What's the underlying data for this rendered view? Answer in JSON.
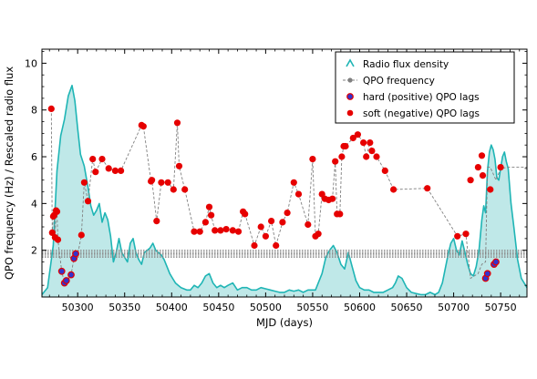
{
  "chart_data": {
    "type": "line",
    "xlabel": "MJD (days)",
    "ylabel": "QPO frequency (Hz) / Rescaled radio flux",
    "xlim": [
      50262,
      50778
    ],
    "ylim": [
      0,
      10.6
    ],
    "xticks": [
      50300,
      50350,
      50400,
      50450,
      50500,
      50550,
      50600,
      50650,
      50700,
      50750
    ],
    "yticks": [
      2,
      4,
      6,
      8,
      10
    ],
    "grid": false,
    "legend_position": "top-right",
    "reference_band": {
      "y_center": 1.85,
      "y_half_width": 0.15,
      "style": "dotted-gray"
    },
    "colors": {
      "radio_fill": "#bfe8e8",
      "radio_line": "#1fb5b5",
      "qpo_line": "#808080",
      "soft_marker": "#e60000",
      "hard_marker_face": "#3333cc",
      "hard_marker_edge": "#e60000"
    },
    "series": [
      {
        "name": "Radio flux density",
        "kind": "area",
        "x": [
          50262,
          50268,
          50274,
          50278,
          50282,
          50286,
          50290,
          50294,
          50297,
          50300,
          50303,
          50307,
          50311,
          50314,
          50317,
          50320,
          50323,
          50326,
          50329,
          50332,
          50335,
          50338,
          50341,
          50344,
          50347,
          50350,
          50353,
          50356,
          50359,
          50362,
          50365,
          50368,
          50371,
          50374,
          50377,
          50380,
          50383,
          50386,
          50389,
          50392,
          50395,
          50398,
          50401,
          50404,
          50407,
          50410,
          50413,
          50416,
          50420,
          50424,
          50428,
          50432,
          50436,
          50440,
          50444,
          50448,
          50452,
          50456,
          50460,
          50465,
          50470,
          50475,
          50480,
          50485,
          50490,
          50495,
          50500,
          50505,
          50510,
          50515,
          50520,
          50525,
          50530,
          50535,
          50540,
          50545,
          50550,
          50553,
          50556,
          50560,
          50564,
          50568,
          50572,
          50576,
          50580,
          50584,
          50588,
          50592,
          50596,
          50600,
          50605,
          50610,
          50615,
          50620,
          50625,
          50630,
          50635,
          50638,
          50641,
          50645,
          50650,
          50655,
          50660,
          50665,
          50670,
          50675,
          50680,
          50684,
          50688,
          50691,
          50694,
          50697,
          50700,
          50703,
          50706,
          50709,
          50712,
          50715,
          50718,
          50721,
          50724,
          50727,
          50730,
          50732,
          50734,
          50736,
          50738,
          50740,
          50742,
          50744,
          50746,
          50748,
          50750,
          50752,
          50754,
          50756,
          50758,
          50761,
          50764,
          50768,
          50772,
          50778
        ],
        "y": [
          0.1,
          0.4,
          2.2,
          5.4,
          6.9,
          7.6,
          8.6,
          9.05,
          8.4,
          7.2,
          6.1,
          5.6,
          4.7,
          3.9,
          3.5,
          3.7,
          4.0,
          3.2,
          3.6,
          3.3,
          2.6,
          1.5,
          1.9,
          2.5,
          1.9,
          1.7,
          1.5,
          2.3,
          2.5,
          1.9,
          1.6,
          1.4,
          1.9,
          2.0,
          2.1,
          2.3,
          2.0,
          1.9,
          1.8,
          1.6,
          1.3,
          1.0,
          0.8,
          0.6,
          0.5,
          0.4,
          0.35,
          0.3,
          0.3,
          0.5,
          0.4,
          0.6,
          0.9,
          1.0,
          0.6,
          0.4,
          0.5,
          0.4,
          0.5,
          0.6,
          0.3,
          0.4,
          0.4,
          0.3,
          0.3,
          0.4,
          0.35,
          0.3,
          0.25,
          0.2,
          0.2,
          0.3,
          0.25,
          0.3,
          0.2,
          0.3,
          0.3,
          0.3,
          0.6,
          1.0,
          1.7,
          2.0,
          2.2,
          1.9,
          1.4,
          1.2,
          1.9,
          1.3,
          0.7,
          0.4,
          0.3,
          0.3,
          0.2,
          0.2,
          0.2,
          0.3,
          0.4,
          0.6,
          0.9,
          0.8,
          0.4,
          0.2,
          0.15,
          0.1,
          0.1,
          0.2,
          0.1,
          0.2,
          0.6,
          1.2,
          1.8,
          2.3,
          2.5,
          2.0,
          1.8,
          2.4,
          1.9,
          1.4,
          1.0,
          0.9,
          1.3,
          2.0,
          3.3,
          3.9,
          3.6,
          5.4,
          6.2,
          6.5,
          6.3,
          5.9,
          5.1,
          5.0,
          5.5,
          6.0,
          6.2,
          5.8,
          5.5,
          4.0,
          3.0,
          1.6,
          0.8,
          0.4
        ]
      },
      {
        "name": "QPO frequency",
        "kind": "dashed-line",
        "x": [
          50272,
          50273,
          50274,
          50275,
          50276,
          50277,
          50278,
          50279,
          50283,
          50286,
          50288,
          50290,
          50293,
          50296,
          50298,
          50300,
          50304,
          50307,
          50311,
          50316,
          50319,
          50326,
          50333,
          50340,
          50346,
          50368,
          50370,
          50378,
          50379,
          50384,
          50389,
          50396,
          50402,
          50406,
          50408,
          50414,
          50424,
          50430,
          50436,
          50440,
          50442,
          50446,
          50452,
          50458,
          50465,
          50471,
          50476,
          50478,
          50488,
          50495,
          50500,
          50506,
          50511,
          50518,
          50523,
          50530,
          50535,
          50545,
          50550,
          50553,
          50556,
          50560,
          50563,
          50567,
          50571,
          50574,
          50576,
          50579,
          50581,
          50583,
          50585,
          50593,
          50598,
          50604,
          50607,
          50611,
          50613,
          50618,
          50627,
          50636,
          50672,
          50704,
          50713,
          50718,
          50726,
          50730,
          50734,
          50736,
          50739,
          50745,
          50750,
          50758,
          50778
        ],
        "y": [
          8.05,
          2.75,
          3.45,
          3.5,
          2.55,
          3.7,
          3.65,
          2.45,
          1.1,
          0.6,
          0.7,
          0.75,
          0.95,
          1.65,
          1.85,
          1.8,
          2.65,
          4.9,
          4.1,
          5.9,
          5.35,
          5.9,
          5.5,
          5.4,
          5.4,
          7.35,
          7.3,
          4.95,
          5.0,
          3.25,
          4.9,
          4.9,
          4.6,
          7.45,
          5.6,
          4.6,
          2.8,
          2.8,
          3.2,
          3.85,
          3.5,
          2.85,
          2.85,
          2.9,
          2.85,
          2.8,
          3.65,
          3.55,
          2.2,
          3.0,
          2.6,
          3.25,
          2.2,
          3.2,
          3.6,
          4.9,
          4.4,
          3.1,
          5.9,
          2.6,
          2.7,
          4.4,
          4.2,
          4.15,
          4.2,
          5.8,
          3.55,
          3.55,
          6.0,
          6.45,
          6.45,
          6.8,
          6.95,
          6.6,
          6.0,
          6.6,
          6.25,
          6.0,
          5.4,
          4.6,
          4.65,
          2.6,
          2.7,
          0.8,
          1.0,
          1.4,
          1.5,
          5.55,
          5.55,
          5.0,
          5.5,
          5.55,
          5.55
        ]
      },
      {
        "name": "hard (positive) QPO lags",
        "kind": "markers",
        "x": [
          50283,
          50286,
          50288,
          50293,
          50296,
          50298,
          50734,
          50736,
          50743,
          50745
        ],
        "y": [
          1.1,
          0.6,
          0.7,
          0.95,
          1.65,
          1.85,
          0.8,
          1.0,
          1.4,
          1.5
        ]
      },
      {
        "name": "soft (negative) QPO lags",
        "kind": "markers",
        "x": [
          50272,
          50273,
          50274,
          50275,
          50276,
          50277,
          50278,
          50279,
          50304,
          50307,
          50311,
          50316,
          50319,
          50326,
          50333,
          50340,
          50346,
          50368,
          50370,
          50378,
          50379,
          50384,
          50389,
          50396,
          50402,
          50406,
          50408,
          50414,
          50424,
          50430,
          50436,
          50440,
          50442,
          50446,
          50452,
          50458,
          50465,
          50471,
          50476,
          50478,
          50488,
          50495,
          50500,
          50506,
          50511,
          50518,
          50523,
          50530,
          50535,
          50545,
          50550,
          50553,
          50556,
          50560,
          50563,
          50567,
          50571,
          50574,
          50576,
          50579,
          50581,
          50583,
          50585,
          50593,
          50598,
          50604,
          50607,
          50611,
          50613,
          50618,
          50627,
          50636,
          50672,
          50704,
          50713,
          50718,
          50726,
          50730,
          50731,
          50739,
          50750
        ],
        "y": [
          8.05,
          2.75,
          3.45,
          3.5,
          2.55,
          3.7,
          3.65,
          2.45,
          2.65,
          4.9,
          4.1,
          5.9,
          5.35,
          5.9,
          5.5,
          5.4,
          5.4,
          7.35,
          7.3,
          4.95,
          5.0,
          3.25,
          4.9,
          4.9,
          4.6,
          7.45,
          5.6,
          4.6,
          2.8,
          2.8,
          3.2,
          3.85,
          3.5,
          2.85,
          2.85,
          2.9,
          2.85,
          2.8,
          3.65,
          3.55,
          2.2,
          3.0,
          2.6,
          3.25,
          2.2,
          3.2,
          3.6,
          4.9,
          4.4,
          3.1,
          5.9,
          2.6,
          2.7,
          4.4,
          4.2,
          4.15,
          4.2,
          5.8,
          3.55,
          3.55,
          6.0,
          6.45,
          6.45,
          6.8,
          6.95,
          6.6,
          6.0,
          6.6,
          6.25,
          6.0,
          5.4,
          4.6,
          4.65,
          2.6,
          2.7,
          5.0,
          5.55,
          6.05,
          5.2,
          4.6,
          5.55
        ]
      }
    ]
  }
}
